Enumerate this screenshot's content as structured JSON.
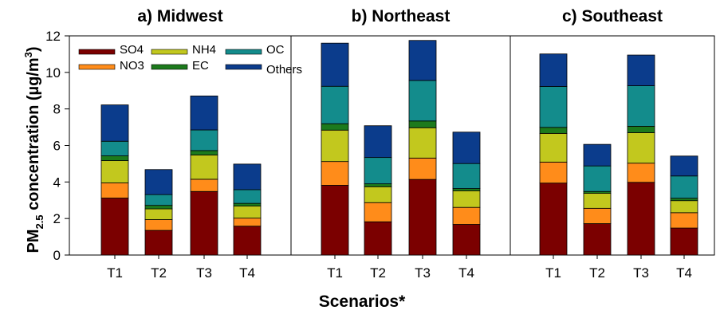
{
  "chart_data": {
    "type": "bar",
    "stacked": true,
    "ylabel_main": "PM",
    "ylabel_sub": "2.5",
    "ylabel_mid": " concentration (µg/m",
    "ylabel_sup": "3",
    "ylabel_end": ")",
    "xlabel": "Scenarios*",
    "ylim": [
      0,
      12
    ],
    "yticks": [
      "0",
      "2",
      "4",
      "6",
      "8",
      "10",
      "12"
    ],
    "categories": [
      "T1",
      "T2",
      "T3",
      "T4"
    ],
    "legend_position": "top-left",
    "components": [
      {
        "name": "SO4",
        "color": "#7b0000"
      },
      {
        "name": "NO3",
        "color": "#ff8c1a"
      },
      {
        "name": "NH4",
        "color": "#c2c81e"
      },
      {
        "name": "EC",
        "color": "#1c7a1c"
      },
      {
        "name": "OC",
        "color": "#138c8c"
      },
      {
        "name": "Others",
        "color": "#0b3c8c"
      }
    ],
    "panels": [
      {
        "title": "a) Midwest",
        "series": [
          {
            "name": "SO4",
            "values": [
              3.12,
              1.35,
              3.48,
              1.58
            ]
          },
          {
            "name": "NO3",
            "values": [
              0.83,
              0.59,
              0.67,
              0.44
            ]
          },
          {
            "name": "NH4",
            "values": [
              1.22,
              0.59,
              1.33,
              0.66
            ]
          },
          {
            "name": "EC",
            "values": [
              0.26,
              0.19,
              0.24,
              0.15
            ]
          },
          {
            "name": "OC",
            "values": [
              0.8,
              0.59,
              1.13,
              0.75
            ]
          },
          {
            "name": "Others",
            "values": [
              1.99,
              1.37,
              1.86,
              1.4
            ]
          }
        ]
      },
      {
        "title": "b) Northeast",
        "series": [
          {
            "name": "SO4",
            "values": [
              3.82,
              1.82,
              4.14,
              1.68
            ]
          },
          {
            "name": "NO3",
            "values": [
              1.3,
              1.05,
              1.17,
              0.93
            ]
          },
          {
            "name": "NH4",
            "values": [
              1.72,
              0.87,
              1.66,
              0.91
            ]
          },
          {
            "name": "EC",
            "values": [
              0.35,
              0.16,
              0.37,
              0.12
            ]
          },
          {
            "name": "OC",
            "values": [
              2.05,
              1.44,
              2.22,
              1.37
            ]
          },
          {
            "name": "Others",
            "values": [
              2.36,
              1.74,
              2.19,
              1.72
            ]
          }
        ]
      },
      {
        "title": "c) Southeast",
        "series": [
          {
            "name": "SO4",
            "values": [
              3.94,
              1.72,
              3.98,
              1.48
            ]
          },
          {
            "name": "NO3",
            "values": [
              1.15,
              0.84,
              1.05,
              0.84
            ]
          },
          {
            "name": "NH4",
            "values": [
              1.57,
              0.82,
              1.67,
              0.66
            ]
          },
          {
            "name": "EC",
            "values": [
              0.33,
              0.1,
              0.35,
              0.13
            ]
          },
          {
            "name": "OC",
            "values": [
              2.24,
              1.4,
              2.22,
              1.22
            ]
          },
          {
            "name": "Others",
            "values": [
              1.78,
              1.18,
              1.68,
              1.09
            ]
          }
        ]
      }
    ]
  }
}
